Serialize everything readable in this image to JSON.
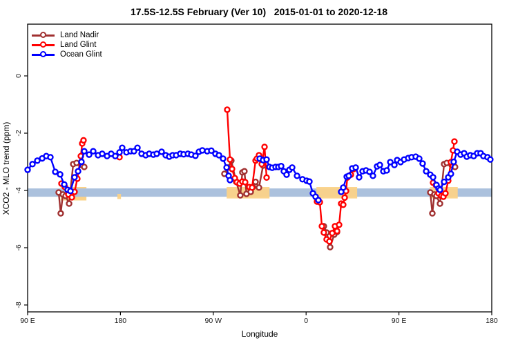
{
  "title": "17.5S-12.5S February (Ver 10)   2015-01-01 to 2020-12-18",
  "axis": {
    "xlabel": "Longitude",
    "ylabel": "XCO2 - MLO trend (ppm)"
  },
  "legend": {
    "items": [
      {
        "label": "Land Nadir",
        "color": "#a03030"
      },
      {
        "label": "Land Glint",
        "color": "#ff0000"
      },
      {
        "label": "Ocean Glint",
        "color": "#0000ff"
      }
    ]
  },
  "chart_data": {
    "type": "line",
    "title": "17.5S-12.5S February (Ver 10)   2015-01-01 to 2020-12-18",
    "xlabel": "Longitude",
    "ylabel": "XCO2 - MLO trend (ppm)",
    "x_axis": {
      "span_deg": 450,
      "note": "x is position along axis in degrees; longitude wraps eastward from 90E to 180, so 90E-180 appears at both ends",
      "ticks": [
        {
          "pos": 0,
          "label": "90 E"
        },
        {
          "pos": 90,
          "label": "180"
        },
        {
          "pos": 180,
          "label": "90 W"
        },
        {
          "pos": 270,
          "label": "0"
        },
        {
          "pos": 360,
          "label": "90 E"
        },
        {
          "pos": 450,
          "label": "180"
        }
      ]
    },
    "y_axis": {
      "lim": [
        -8.2,
        1.8
      ],
      "grid": false,
      "ticks": [
        {
          "value": 0,
          "label": "0"
        },
        {
          "value": -2,
          "label": "-2"
        },
        {
          "value": -4,
          "label": "-4"
        },
        {
          "value": -6,
          "label": "-6"
        },
        {
          "value": -8,
          "label": "-8"
        }
      ]
    },
    "bands": {
      "ocean_reference_band": {
        "t": [
          0,
          450
        ],
        "v": [
          -3.93,
          -4.22
        ],
        "color": "#abc1dd"
      },
      "land_highlight_color": "#fbd288",
      "land_highlights": [
        {
          "t": [
            32,
            57
          ],
          "v": [
            -3.88,
            -4.35
          ],
          "layer": "under"
        },
        {
          "t": [
            87,
            90.5
          ],
          "v": [
            -4.12,
            -4.3
          ],
          "layer": "over"
        },
        {
          "t": [
            193,
            234.5
          ],
          "v": [
            -3.88,
            -4.28
          ],
          "layer": "over"
        },
        {
          "t": [
            280,
            319.5
          ],
          "v": [
            -3.88,
            -4.28
          ],
          "layer": "over"
        },
        {
          "t": [
            390,
            417
          ],
          "v": [
            -3.88,
            -4.28
          ],
          "layer": "over"
        }
      ]
    },
    "series": [
      {
        "name": "Land Nadir",
        "color": "#a03030",
        "segments": [
          [
            [
              30.1,
              -4.07
            ],
            [
              32.1,
              -4.8
            ],
            [
              34.2,
              -4.14
            ],
            [
              36.8,
              -4.19
            ],
            [
              40.2,
              -4.46
            ],
            [
              44.2,
              -3.08
            ],
            [
              47.5,
              -3.04
            ],
            [
              52.2,
              -3.11
            ],
            [
              54.9,
              -3.18
            ]
          ],
          [
            [
              190.8,
              -3.42
            ],
            [
              194.2,
              -3.2
            ],
            [
              197.5,
              -2.96
            ],
            [
              202.2,
              -3.7
            ],
            [
              206.2,
              -4.17
            ],
            [
              208.2,
              -3.37
            ],
            [
              210.2,
              -3.33
            ],
            [
              212.2,
              -4.12
            ],
            [
              216.3,
              -4.05
            ],
            [
              218.3,
              -3.88
            ],
            [
              221,
              -3.7
            ],
            [
              224.3,
              -3.9
            ],
            [
              228.3,
              -3.13
            ]
          ],
          [
            [
              287.2,
              -5.25
            ],
            [
              289.9,
              -5.47
            ],
            [
              293.3,
              -5.98
            ],
            [
              297.3,
              -5.54
            ],
            [
              300,
              -5.45
            ]
          ],
          [
            [
              390.4,
              -4.07
            ],
            [
              392.4,
              -4.8
            ],
            [
              394.4,
              -4.14
            ],
            [
              396.4,
              -4.19
            ],
            [
              399.8,
              -4.46
            ],
            [
              403.8,
              -3.08
            ],
            [
              406.4,
              -3.04
            ],
            [
              411.1,
              -3.11
            ],
            [
              414.4,
              -3.18
            ]
          ]
        ]
      },
      {
        "name": "Land Glint",
        "color": "#ff0000",
        "segments": [
          [
            [
              32.8,
              -3.76
            ],
            [
              36.2,
              -3.88
            ],
            [
              39.5,
              -4.14
            ],
            [
              42.9,
              -4.24
            ],
            [
              45.5,
              -4.05
            ],
            [
              48.2,
              -3.59
            ],
            [
              51.6,
              -2.8
            ],
            [
              52.9,
              -2.36
            ],
            [
              54.2,
              -2.25
            ]
          ],
          [
            [
              89.1,
              -2.84
            ]
          ],
          [
            [
              193.5,
              -1.18
            ],
            [
              196.2,
              -2.92
            ],
            [
              198.2,
              -3.25
            ],
            [
              200.9,
              -3.57
            ],
            [
              202.9,
              -3.71
            ],
            [
              205.6,
              -3.76
            ],
            [
              208.2,
              -3.69
            ],
            [
              210.9,
              -3.71
            ],
            [
              214.9,
              -3.88
            ],
            [
              217.6,
              -3.9
            ],
            [
              221,
              -2.96
            ],
            [
              222.3,
              -2.89
            ],
            [
              224.3,
              -2.77
            ],
            [
              227,
              -3.08
            ],
            [
              229.7,
              -2.48
            ],
            [
              231.7,
              -3.55
            ]
          ],
          [
            [
              280.6,
              -4.39
            ],
            [
              283.3,
              -4.41
            ],
            [
              285.3,
              -5.25
            ],
            [
              287.2,
              -5.47
            ],
            [
              289.9,
              -5.71
            ],
            [
              292.6,
              -5.78
            ],
            [
              295.3,
              -5.49
            ],
            [
              298,
              -5.25
            ],
            [
              300,
              -5.42
            ],
            [
              302,
              -5.2
            ],
            [
              304,
              -4.46
            ],
            [
              306,
              -4.5
            ],
            [
              307.4,
              -4.25
            ],
            [
              308.7,
              -4.02
            ],
            [
              310,
              -3.55
            ],
            [
              313.4,
              -3.45
            ],
            [
              316.1,
              -3.25
            ]
          ],
          [
            [
              393.1,
              -3.73
            ],
            [
              395.8,
              -3.81
            ],
            [
              398.4,
              -4.1
            ],
            [
              401.1,
              -4.19
            ],
            [
              403.1,
              -4.22
            ],
            [
              405.1,
              -4.1
            ],
            [
              407.8,
              -3.66
            ],
            [
              410.4,
              -3.01
            ],
            [
              412.4,
              -2.6
            ],
            [
              413.8,
              -2.29
            ]
          ]
        ]
      },
      {
        "name": "Ocean Glint",
        "color": "#0000ff",
        "segments": [
          [
            [
              0,
              -3.28
            ],
            [
              4.7,
              -3.08
            ],
            [
              9.4,
              -2.96
            ],
            [
              14.1,
              -2.88
            ],
            [
              18.1,
              -2.8
            ],
            [
              22.1,
              -2.84
            ],
            [
              26.8,
              -3.35
            ],
            [
              31.5,
              -3.44
            ],
            [
              35.5,
              -3.79
            ],
            [
              38.8,
              -3.98
            ],
            [
              41.5,
              -4.02
            ],
            [
              45.5,
              -3.54
            ],
            [
              48.9,
              -3.33
            ],
            [
              52.2,
              -3.0
            ],
            [
              54.9,
              -2.63
            ],
            [
              59.6,
              -2.75
            ],
            [
              63.6,
              -2.63
            ],
            [
              68.3,
              -2.77
            ],
            [
              72.3,
              -2.72
            ],
            [
              77,
              -2.8
            ],
            [
              81,
              -2.72
            ],
            [
              85,
              -2.8
            ],
            [
              89.1,
              -2.67
            ],
            [
              91.7,
              -2.51
            ],
            [
              95.8,
              -2.67
            ],
            [
              99.8,
              -2.63
            ],
            [
              103.1,
              -2.63
            ],
            [
              106.5,
              -2.51
            ],
            [
              110.5,
              -2.72
            ],
            [
              114.5,
              -2.77
            ],
            [
              117.9,
              -2.72
            ],
            [
              121.9,
              -2.75
            ],
            [
              125.2,
              -2.72
            ],
            [
              129.9,
              -2.65
            ],
            [
              133.9,
              -2.77
            ],
            [
              137.3,
              -2.82
            ],
            [
              140.6,
              -2.77
            ],
            [
              144,
              -2.77
            ],
            [
              148,
              -2.72
            ],
            [
              151.3,
              -2.74
            ],
            [
              155.4,
              -2.72
            ],
            [
              158.7,
              -2.75
            ],
            [
              162.7,
              -2.79
            ],
            [
              166.1,
              -2.65
            ],
            [
              169.4,
              -2.6
            ],
            [
              174.1,
              -2.63
            ],
            [
              178.1,
              -2.61
            ],
            [
              182.1,
              -2.72
            ],
            [
              185.5,
              -2.77
            ],
            [
              189.5,
              -2.89
            ],
            [
              192.9,
              -3.2
            ],
            [
              194.9,
              -3.49
            ],
            [
              196.2,
              -3.64
            ]
          ],
          [
            [
              225,
              -2.89
            ],
            [
              228.3,
              -2.94
            ],
            [
              231.7,
              -2.92
            ],
            [
              234.4,
              -3.18
            ],
            [
              237.1,
              -3.21
            ],
            [
              240.4,
              -3.18
            ],
            [
              243.1,
              -3.18
            ],
            [
              245.8,
              -3.15
            ],
            [
              248.4,
              -3.33
            ],
            [
              251.1,
              -3.45
            ],
            [
              253.8,
              -3.28
            ],
            [
              256.5,
              -3.2
            ],
            [
              261.2,
              -3.49
            ],
            [
              266.5,
              -3.61
            ],
            [
              270.5,
              -3.66
            ],
            [
              273.2,
              -3.69
            ],
            [
              276.6,
              -4.1
            ],
            [
              279.2,
              -4.22
            ],
            [
              281.9,
              -4.34
            ]
          ],
          [
            [
              304,
              -4.05
            ],
            [
              306,
              -3.9
            ],
            [
              309.4,
              -3.52
            ],
            [
              311.4,
              -3.49
            ],
            [
              314.7,
              -3.23
            ],
            [
              318.1,
              -3.2
            ],
            [
              321.4,
              -3.54
            ],
            [
              324.8,
              -3.33
            ],
            [
              328.1,
              -3.3
            ],
            [
              331.5,
              -3.35
            ],
            [
              334.8,
              -3.49
            ],
            [
              338.8,
              -3.16
            ],
            [
              341.5,
              -3.11
            ],
            [
              344.9,
              -3.33
            ],
            [
              348.2,
              -3.3
            ],
            [
              351.6,
              -3.01
            ],
            [
              355.6,
              -3.11
            ],
            [
              358.3,
              -2.94
            ],
            [
              361.6,
              -3.01
            ],
            [
              365,
              -2.92
            ],
            [
              369,
              -2.87
            ],
            [
              372.3,
              -2.84
            ],
            [
              376.3,
              -2.82
            ],
            [
              379.7,
              -2.89
            ],
            [
              383,
              -3.06
            ],
            [
              386.4,
              -3.33
            ],
            [
              390.4,
              -3.45
            ],
            [
              393.1,
              -3.54
            ],
            [
              396.4,
              -3.81
            ],
            [
              398.4,
              -3.93
            ],
            [
              399.8,
              -3.98
            ],
            [
              403.8,
              -3.7
            ],
            [
              407.8,
              -3.54
            ],
            [
              410.4,
              -3.42
            ],
            [
              413.1,
              -3.0
            ],
            [
              416.5,
              -2.65
            ],
            [
              419.8,
              -2.75
            ],
            [
              423.2,
              -2.7
            ],
            [
              425.8,
              -2.82
            ],
            [
              429.2,
              -2.77
            ],
            [
              432.5,
              -2.8
            ],
            [
              435.9,
              -2.7
            ],
            [
              439.2,
              -2.7
            ],
            [
              441.9,
              -2.8
            ],
            [
              445.9,
              -2.84
            ],
            [
              448.6,
              -2.92
            ]
          ]
        ]
      }
    ]
  }
}
